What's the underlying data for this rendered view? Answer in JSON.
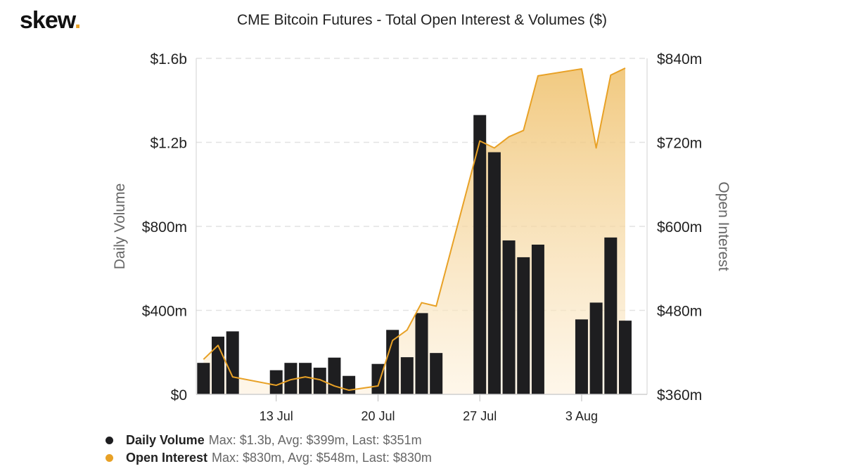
{
  "brand": {
    "name": "skew",
    "dot": "."
  },
  "title": "CME Bitcoin Futures - Total Open Interest & Volumes ($)",
  "colors": {
    "volume_bar": "#1e1e20",
    "open_interest_line": "#e8a126",
    "open_interest_fill_top": "#efc06a",
    "open_interest_fill_bottom": "#fdf1dc"
  },
  "legend": [
    {
      "name": "Daily Volume",
      "stats": "Max: $1.3b, Avg: $399m, Last: $351m",
      "color": "#1e1e20"
    },
    {
      "name": "Open Interest",
      "stats": "Max: $830m, Avg: $548m, Last: $830m",
      "color": "#e8a126"
    }
  ],
  "chart_data": {
    "type": "bar",
    "title": "CME Bitcoin Futures - Total Open Interest & Volumes ($)",
    "xlabel": "",
    "x_tick_labels": [
      "13 Jul",
      "20 Jul",
      "27 Jul",
      "3 Aug"
    ],
    "x_tick_dates": [
      "2020-07-13",
      "2020-07-20",
      "2020-07-27",
      "2020-08-03"
    ],
    "dates": [
      "2020-07-08",
      "2020-07-09",
      "2020-07-10",
      "2020-07-11",
      "2020-07-12",
      "2020-07-13",
      "2020-07-14",
      "2020-07-15",
      "2020-07-16",
      "2020-07-17",
      "2020-07-18",
      "2020-07-19",
      "2020-07-20",
      "2020-07-21",
      "2020-07-22",
      "2020-07-23",
      "2020-07-24",
      "2020-07-25",
      "2020-07-26",
      "2020-07-27",
      "2020-07-28",
      "2020-07-29",
      "2020-07-30",
      "2020-07-31",
      "2020-08-01",
      "2020-08-02",
      "2020-08-03",
      "2020-08-04",
      "2020-08-05",
      "2020-08-06",
      "2020-08-07"
    ],
    "left_axis": {
      "label": "Daily Volume",
      "range": [
        0,
        1600000000
      ],
      "ticks": [
        0,
        400000000,
        800000000,
        1200000000,
        1600000000
      ],
      "tick_labels": [
        "$0",
        "$400m",
        "$800m",
        "$1.2b",
        "$1.6b"
      ]
    },
    "right_axis": {
      "label": "Open Interest",
      "range": [
        360000000,
        840000000
      ],
      "ticks": [
        360000000,
        480000000,
        600000000,
        720000000,
        840000000
      ],
      "tick_labels": [
        "$360m",
        "$480m",
        "$600m",
        "$720m",
        "$840m"
      ]
    },
    "grid": true,
    "legend_position": "bottom-left",
    "series": [
      {
        "name": "Daily Volume",
        "type": "bar",
        "axis": "left",
        "color": "#1e1e20",
        "bars": [
          {
            "date": "2020-07-08",
            "value": 150000000
          },
          {
            "date": "2020-07-09",
            "value": 275000000
          },
          {
            "date": "2020-07-10",
            "value": 300000000
          },
          {
            "date": "2020-07-13",
            "value": 115000000
          },
          {
            "date": "2020-07-14",
            "value": 150000000
          },
          {
            "date": "2020-07-15",
            "value": 150000000
          },
          {
            "date": "2020-07-16",
            "value": 127000000
          },
          {
            "date": "2020-07-17",
            "value": 175000000
          },
          {
            "date": "2020-07-18",
            "value": 88000000
          },
          {
            "date": "2020-07-20",
            "value": 145000000
          },
          {
            "date": "2020-07-21",
            "value": 307000000
          },
          {
            "date": "2020-07-22",
            "value": 177000000
          },
          {
            "date": "2020-07-23",
            "value": 387000000
          },
          {
            "date": "2020-07-24",
            "value": 197000000
          },
          {
            "date": "2020-07-27",
            "value": 1330000000
          },
          {
            "date": "2020-07-28",
            "value": 1153000000
          },
          {
            "date": "2020-07-29",
            "value": 733000000
          },
          {
            "date": "2020-07-30",
            "value": 653000000
          },
          {
            "date": "2020-07-31",
            "value": 713000000
          },
          {
            "date": "2020-08-03",
            "value": 357000000
          },
          {
            "date": "2020-08-04",
            "value": 437000000
          },
          {
            "date": "2020-08-05",
            "value": 747000000
          },
          {
            "date": "2020-08-06",
            "value": 351000000
          }
        ]
      },
      {
        "name": "Open Interest",
        "type": "area",
        "axis": "right",
        "color": "#e8a126",
        "points": [
          {
            "date": "2020-07-08",
            "value": 410000000
          },
          {
            "date": "2020-07-09",
            "value": 430000000
          },
          {
            "date": "2020-07-10",
            "value": 385000000
          },
          {
            "date": "2020-07-13",
            "value": 373000000
          },
          {
            "date": "2020-07-14",
            "value": 381000000
          },
          {
            "date": "2020-07-15",
            "value": 385000000
          },
          {
            "date": "2020-07-16",
            "value": 381000000
          },
          {
            "date": "2020-07-17",
            "value": 372000000
          },
          {
            "date": "2020-07-18",
            "value": 366000000
          },
          {
            "date": "2020-07-20",
            "value": 372000000
          },
          {
            "date": "2020-07-21",
            "value": 437000000
          },
          {
            "date": "2020-07-22",
            "value": 452000000
          },
          {
            "date": "2020-07-23",
            "value": 491000000
          },
          {
            "date": "2020-07-24",
            "value": 486000000
          },
          {
            "date": "2020-07-27",
            "value": 722000000
          },
          {
            "date": "2020-07-28",
            "value": 712000000
          },
          {
            "date": "2020-07-29",
            "value": 728000000
          },
          {
            "date": "2020-07-30",
            "value": 737000000
          },
          {
            "date": "2020-07-31",
            "value": 815000000
          },
          {
            "date": "2020-08-03",
            "value": 825000000
          },
          {
            "date": "2020-08-04",
            "value": 712000000
          },
          {
            "date": "2020-08-05",
            "value": 816000000
          },
          {
            "date": "2020-08-06",
            "value": 826000000
          }
        ]
      }
    ]
  }
}
